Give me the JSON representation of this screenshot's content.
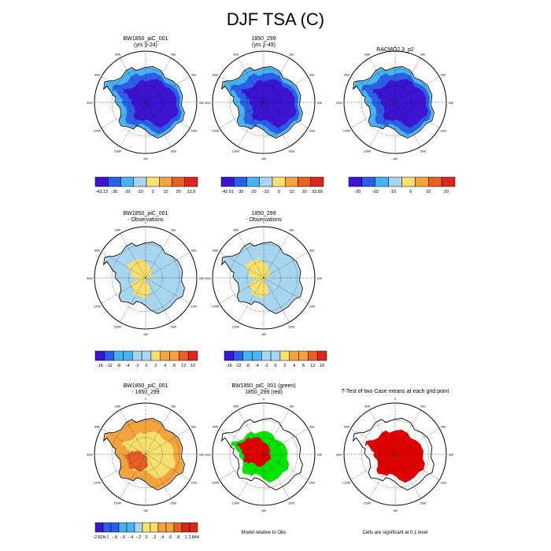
{
  "title": "DJF TSA (C)",
  "colors": {
    "cold_deep": "#3c14d2",
    "cold_mid": "#2a5fe6",
    "cold_light": "#46b4f0",
    "cold_pale": "#a8d6f0",
    "warm_pale": "#f8e070",
    "warm_mid": "#f4a43c",
    "warm_deep": "#e86024",
    "warm_red": "#d8281c",
    "sig_red": "#e00000",
    "sig_green": "#00e600"
  },
  "panels": [
    {
      "title": [
        "BW1850_piC_001",
        "(yrs 5-24)"
      ],
      "fill": "cold",
      "colorbar": {
        "labels": [
          "-43.13",
          "-30",
          "-20",
          "-10",
          "0",
          "10",
          "20",
          "33.9"
        ]
      }
    },
    {
      "title": [
        "1850_299",
        "(yrs 2-49)"
      ],
      "fill": "cold",
      "colorbar": {
        "labels": [
          "-42.51",
          "-30",
          "-20",
          "-10",
          "0",
          "10",
          "20",
          "33.89"
        ]
      }
    },
    {
      "title": [
        "RACMO2.3_p2"
      ],
      "fill": "cold",
      "colorbar": {
        "labels": [
          "-30",
          "-20",
          "-10",
          "0",
          "10",
          "20"
        ]
      }
    },
    {
      "title": [
        "BW1850_piC_001",
        "- Observations"
      ],
      "fill": "bias",
      "colorbar": {
        "labels": [
          "-16",
          "-12",
          "-8",
          "-4",
          "-2",
          "0",
          "2",
          "4",
          "8",
          "12",
          "16"
        ]
      }
    },
    {
      "title": [
        "1850_299",
        "- Observations"
      ],
      "fill": "bias",
      "colorbar": {
        "labels": [
          "-16",
          "-12",
          "-8",
          "-4",
          "-2",
          "0",
          "2",
          "4",
          "8",
          "12",
          "16"
        ]
      }
    },
    {
      "title": [
        "BW1850_piC_001",
        "- 1850_299"
      ],
      "fill": "diff",
      "colorbar": {
        "labels": [
          "-2.828",
          "-1",
          "-.8",
          "-.6",
          "-.4",
          "-.2",
          "0",
          ".2",
          ".4",
          ".6",
          ".8",
          "1",
          "2.844"
        ]
      }
    },
    {
      "title": [
        "BW1850_piC_001 (green)",
        "1850_299 (red)"
      ],
      "fill": "sig2",
      "caption": "Model relative to Obs"
    },
    {
      "title": [
        "T-Test of two Case means at each grid point"
      ],
      "fill": "sig1",
      "caption": "Cells are significant at 0.1 level"
    }
  ],
  "lon_labels": [
    "0",
    "30E",
    "60E",
    "90E",
    "120E",
    "150E",
    "180",
    "150W",
    "120W",
    "90W",
    "60W",
    "30W"
  ]
}
